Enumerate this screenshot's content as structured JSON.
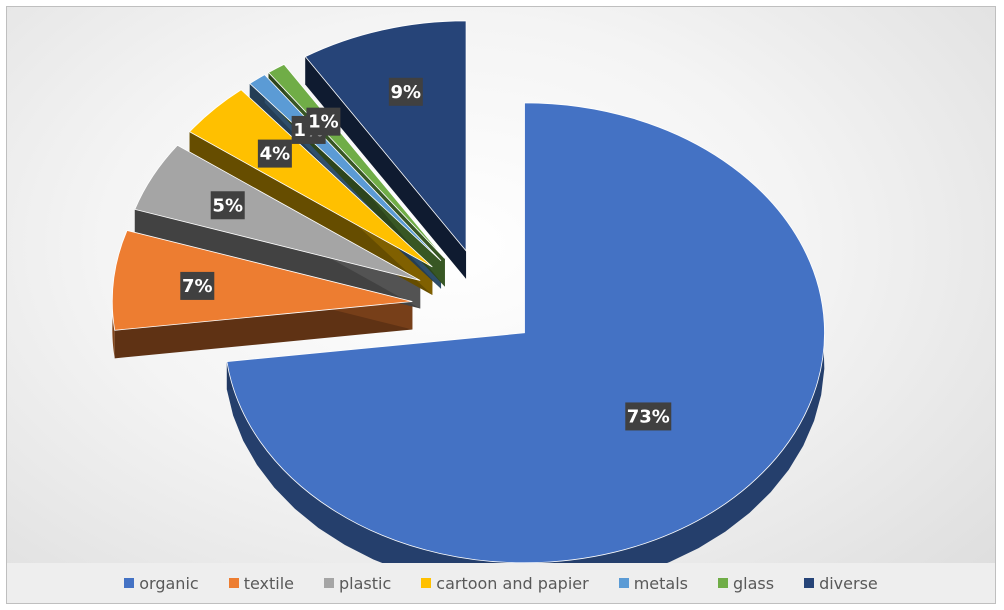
{
  "chart_data": {
    "type": "pie",
    "title": "",
    "style": "3D exploded pie, large slice pulled out",
    "slices": [
      {
        "label": "organic",
        "value": 73,
        "display": "73%",
        "color": "#4472c4"
      },
      {
        "label": "textile",
        "value": 7,
        "display": "7%",
        "color": "#ed7d31"
      },
      {
        "label": "plastic",
        "value": 5,
        "display": "5%",
        "color": "#a5a5a5"
      },
      {
        "label": "cartoon and papier",
        "value": 4,
        "display": "4%",
        "color": "#ffc000"
      },
      {
        "label": "metals",
        "value": 1,
        "display": "1%",
        "color": "#5b9bd5"
      },
      {
        "label": "glass",
        "value": 1,
        "display": "1%",
        "color": "#70ad47"
      },
      {
        "label": "diverse",
        "value": 9,
        "display": "9%",
        "color": "#264478"
      }
    ],
    "legend_position": "bottom"
  }
}
